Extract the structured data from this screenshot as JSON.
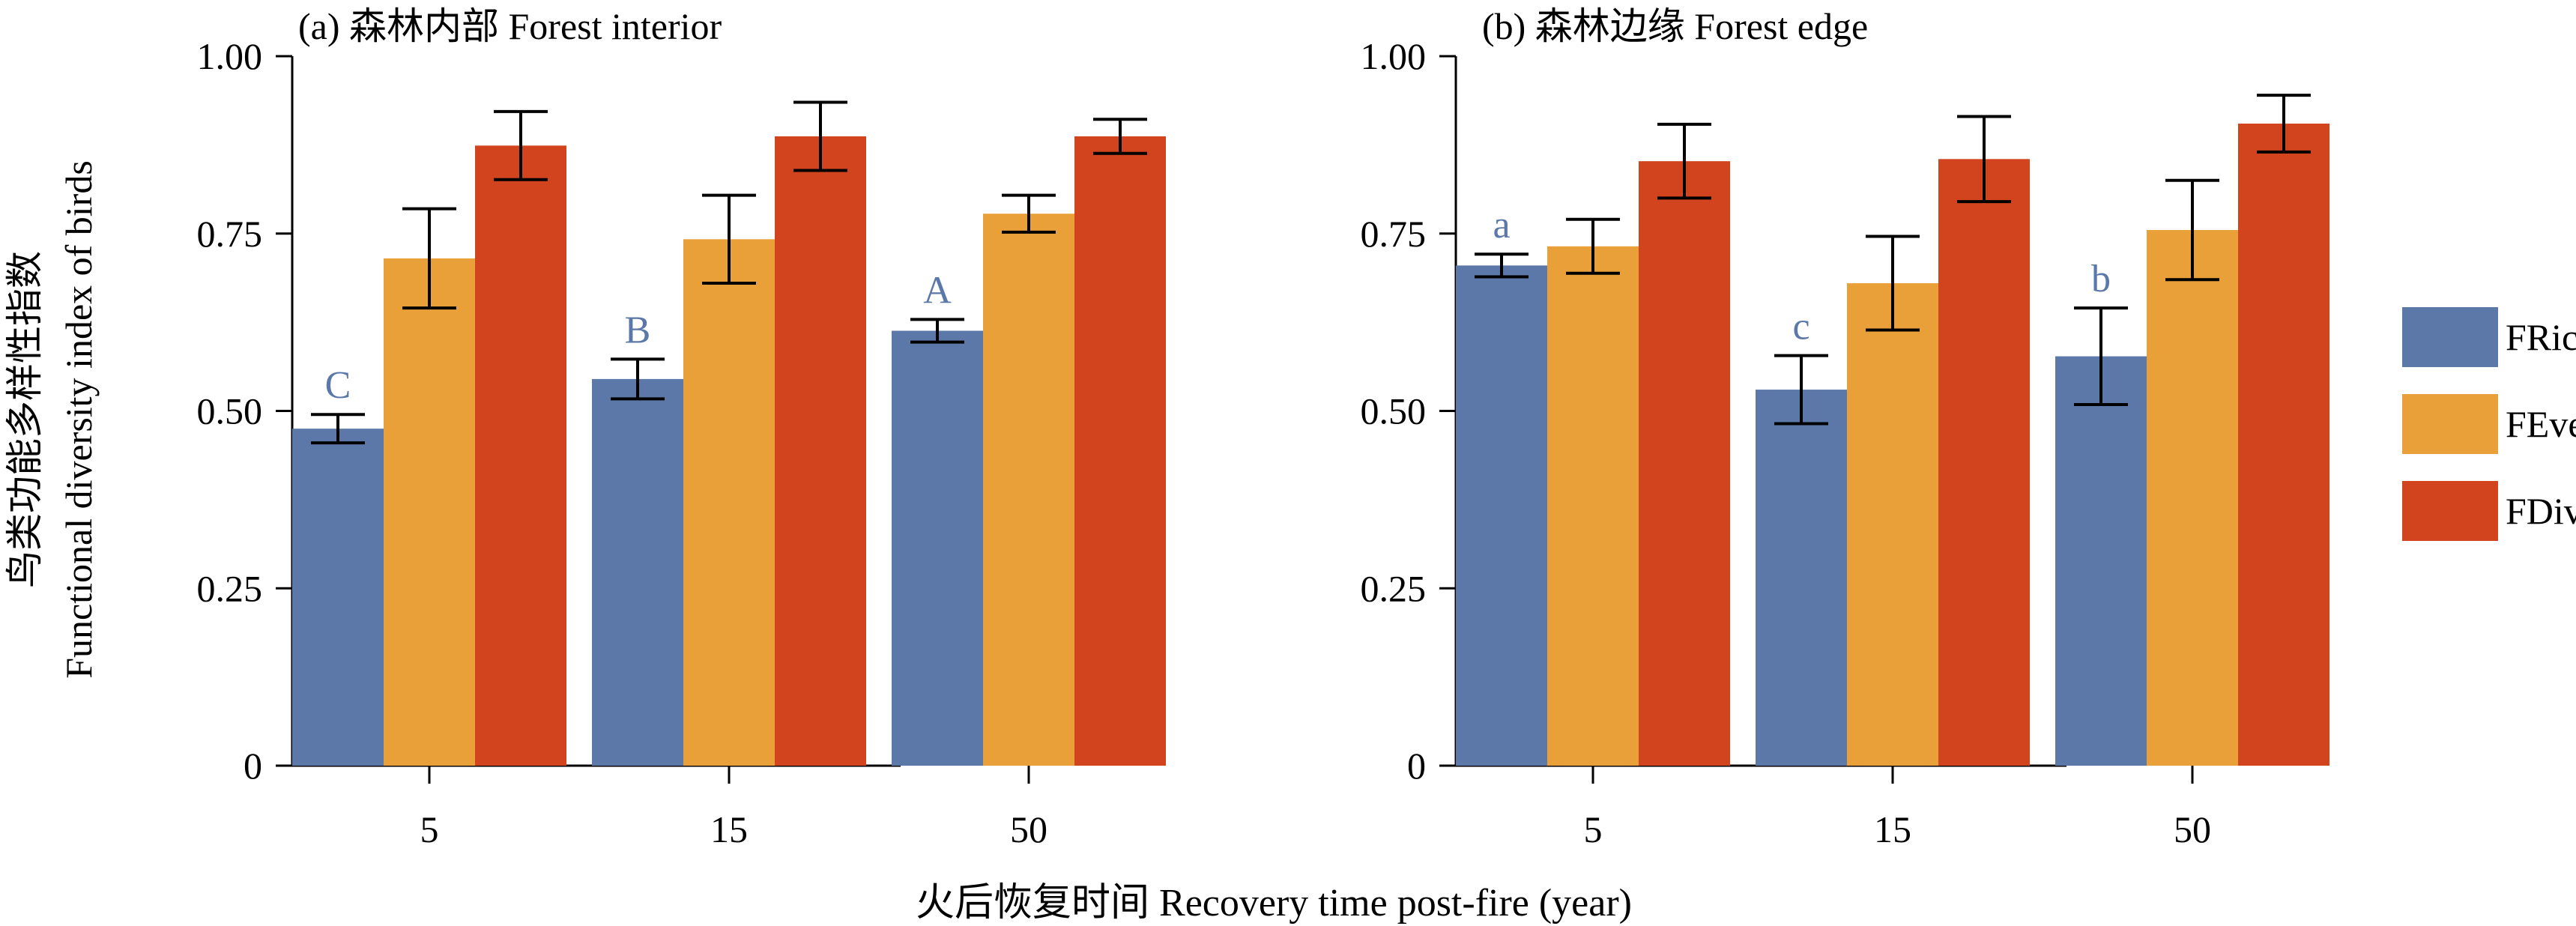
{
  "figure": {
    "ylabel_cn": "鸟类功能多样性指数",
    "ylabel_en": "Functional diversity index of birds",
    "xlabel": "火后恢复时间 Recovery time post-fire (year)"
  },
  "legend": [
    {
      "name": "FRic",
      "color": "#5b78a8"
    },
    {
      "name": "FEve",
      "color": "#e9a038"
    },
    {
      "name": "FDiv",
      "color": "#d1441e"
    }
  ],
  "chart_data": [
    {
      "type": "bar",
      "title": "(a) 森林内部 Forest interior",
      "categories": [
        "5",
        "15",
        "50"
      ],
      "ylim": [
        0,
        1.0
      ],
      "yticks": [
        "0",
        "0.25",
        "0.50",
        "0.75",
        "1.00"
      ],
      "series": [
        {
          "name": "FRic",
          "color": "#5b78a8",
          "values": [
            0.475,
            0.545,
            0.613
          ],
          "errors": [
            0.02,
            0.028,
            0.016
          ],
          "labels": [
            "C",
            "B",
            "A"
          ]
        },
        {
          "name": "FEve",
          "color": "#e9a038",
          "values": [
            0.715,
            0.742,
            0.778
          ],
          "errors": [
            0.07,
            0.062,
            0.026
          ]
        },
        {
          "name": "FDiv",
          "color": "#d1441e",
          "values": [
            0.874,
            0.887,
            0.887
          ],
          "errors": [
            0.048,
            0.048,
            0.024
          ]
        }
      ]
    },
    {
      "type": "bar",
      "title": "(b) 森林边缘 Forest edge",
      "categories": [
        "5",
        "15",
        "50"
      ],
      "ylim": [
        0,
        1.0
      ],
      "yticks": [
        "0",
        "0.25",
        "0.50",
        "0.75",
        "1.00"
      ],
      "series": [
        {
          "name": "FRic",
          "color": "#5b78a8",
          "values": [
            0.705,
            0.53,
            0.577
          ],
          "errors": [
            0.016,
            0.048,
            0.068
          ],
          "labels": [
            "a",
            "c",
            "b"
          ]
        },
        {
          "name": "FEve",
          "color": "#e9a038",
          "values": [
            0.732,
            0.68,
            0.755
          ],
          "errors": [
            0.038,
            0.066,
            0.07
          ]
        },
        {
          "name": "FDiv",
          "color": "#d1441e",
          "values": [
            0.852,
            0.855,
            0.905
          ],
          "errors": [
            0.052,
            0.06,
            0.04
          ]
        }
      ]
    }
  ]
}
